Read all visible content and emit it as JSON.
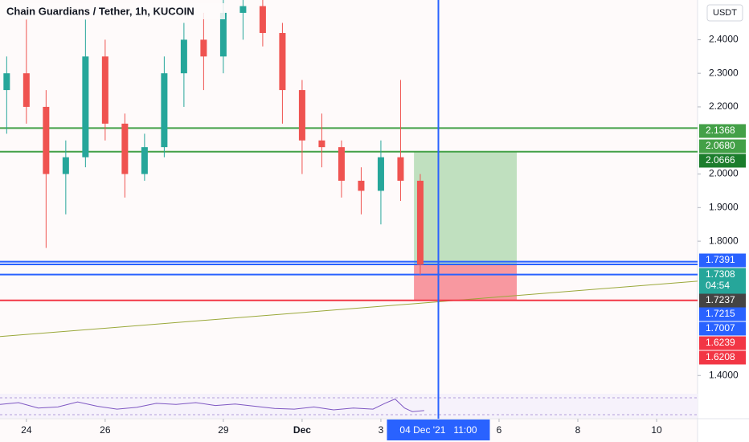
{
  "chart_data": {
    "type": "candlestick",
    "title": "Chain Guardians / Tether, 1h, KUCOIN",
    "currency": "USDT",
    "x": [
      -0.5,
      0,
      0.5,
      1,
      1.5,
      2,
      2.5,
      3,
      3.5,
      4,
      4.5,
      5,
      5.5,
      6,
      6.5,
      7,
      7.5,
      8,
      8.5,
      9,
      9.5,
      10
    ],
    "open": [
      2.25,
      2.3,
      2.2,
      2.0,
      2.05,
      2.35,
      2.15,
      2.0,
      2.08,
      2.3,
      2.4,
      2.35,
      2.48,
      2.5,
      2.42,
      2.25,
      2.1,
      2.08,
      1.98,
      1.95,
      2.05,
      1.98
    ],
    "high": [
      2.35,
      2.46,
      2.25,
      2.1,
      2.46,
      2.4,
      2.18,
      2.12,
      2.35,
      2.45,
      2.48,
      2.55,
      2.55,
      2.52,
      2.45,
      2.28,
      2.18,
      2.1,
      2.02,
      2.1,
      2.28,
      2.0
    ],
    "low": [
      2.12,
      2.15,
      1.78,
      1.88,
      2.02,
      2.1,
      1.93,
      1.98,
      2.05,
      2.2,
      2.25,
      2.3,
      2.4,
      2.38,
      2.15,
      2.0,
      2.02,
      1.93,
      1.88,
      1.85,
      1.92,
      1.7
    ],
    "close": [
      2.3,
      2.2,
      2.0,
      2.05,
      2.35,
      2.15,
      2.0,
      2.08,
      2.3,
      2.4,
      2.35,
      2.48,
      2.5,
      2.42,
      2.25,
      2.1,
      2.08,
      1.98,
      1.95,
      2.05,
      1.98,
      1.73
    ],
    "up_color": "#26a69a",
    "down_color": "#ef5350",
    "xlim": [
      -0.67,
      17.04
    ],
    "xticks": [
      {
        "value": 0,
        "label": "24"
      },
      {
        "value": 2,
        "label": "26"
      },
      {
        "value": 5,
        "label": "29"
      },
      {
        "value": 7,
        "label": "Dec"
      },
      {
        "value": 9,
        "label": "3"
      },
      {
        "value": 12,
        "label": "6"
      },
      {
        "value": 14,
        "label": "8"
      },
      {
        "value": 16,
        "label": "10"
      }
    ],
    "ylim": [
      1.3456,
      2.5182
    ],
    "yticks": [
      {
        "value": 2.4,
        "label": "2.4000"
      },
      {
        "value": 2.3,
        "label": "2.3000"
      },
      {
        "value": 2.2,
        "label": "2.2000"
      },
      {
        "value": 2.0,
        "label": "2.0000"
      },
      {
        "value": 1.9,
        "label": "1.9000"
      },
      {
        "value": 1.8,
        "label": "1.8000"
      },
      {
        "value": 1.4,
        "label": "1.4000"
      }
    ],
    "hlines": [
      {
        "value": 2.1368,
        "color": "#43a047"
      },
      {
        "value": 2.0666,
        "color": "#43a047"
      },
      {
        "value": 1.7391,
        "color": "#2962ff"
      },
      {
        "value": 1.7308,
        "color": "#2962ff"
      },
      {
        "value": 1.7007,
        "color": "#2962ff"
      },
      {
        "value": 1.6239,
        "color": "#f23645"
      }
    ],
    "position": {
      "x": [
        9.84,
        12.45
      ],
      "target": 2.0666,
      "entry": 1.7308,
      "stop": 1.6239
    },
    "trendline": {
      "x": [
        -0.67,
        17.04
      ],
      "values": [
        1.516,
        1.681
      ],
      "color": "#9aa83a"
    },
    "crosshair": {
      "x": 10.46,
      "label": "04 Dec '21   11:00"
    },
    "price_labels": [
      {
        "label": "2.1368",
        "color": "#43a047"
      },
      {
        "label": "2.0680",
        "color": "#43a047"
      },
      {
        "label": "2.0666",
        "color": "#1b7d2c"
      },
      {
        "label": "1.7391",
        "color": "#2962ff"
      },
      {
        "label": "1.7308",
        "color": "#26a69a"
      },
      {
        "label": "1.7237",
        "color": "#444444"
      },
      {
        "label": "1.7215",
        "color": "#2962ff"
      },
      {
        "label": "1.7007",
        "color": "#2962ff"
      },
      {
        "label": "1.6239",
        "color": "#f23645"
      },
      {
        "label": "1.6208",
        "color": "#f23645"
      }
    ],
    "countdown": "04:54",
    "rsi": {
      "x": [
        -0.67,
        -0.2,
        0.3,
        0.8,
        1.3,
        1.8,
        2.3,
        2.8,
        3.3,
        3.8,
        4.3,
        4.8,
        5.3,
        5.8,
        6.3,
        6.8,
        7.3,
        7.8,
        8.3,
        8.8,
        9.1,
        9.36,
        9.6,
        9.8,
        10.1
      ],
      "values": [
        55,
        60,
        45,
        48,
        62,
        50,
        42,
        47,
        58,
        55,
        60,
        52,
        56,
        50,
        44,
        42,
        48,
        40,
        45,
        42,
        58,
        70,
        45,
        35,
        38
      ],
      "ylim": [
        20,
        80
      ],
      "color": "#7e57c2"
    }
  }
}
